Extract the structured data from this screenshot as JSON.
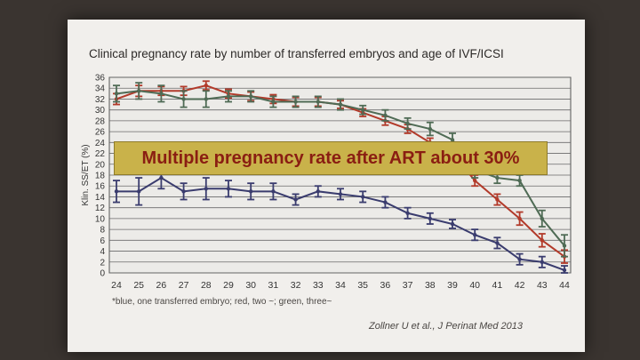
{
  "slide": {
    "title": "Clinical pregnancy rate by number of transferred embryos and age of IVF/ICSI",
    "banner": "Multiple pregnancy rate after ART about 30%",
    "footnote": "*blue, one transferred embryo; red, two ~; green, three~",
    "citation": "Zollner U et al., J Perinat Med 2013"
  },
  "chart_data": {
    "type": "line",
    "title": "Clinical pregnancy rate by number of transferred embryos and age of IVF/ICSI",
    "ylabel": "Klin. SS/ET (%)",
    "xlabel": "",
    "categories": [
      24,
      25,
      26,
      27,
      28,
      29,
      30,
      31,
      32,
      33,
      34,
      35,
      36,
      37,
      38,
      39,
      40,
      41,
      42,
      43,
      44
    ],
    "ylim": [
      0,
      36
    ],
    "yticks": [
      0,
      2,
      4,
      6,
      8,
      10,
      12,
      14,
      16,
      18,
      20,
      22,
      24,
      26,
      28,
      30,
      32,
      34,
      36
    ],
    "grid": true,
    "error_bars": true,
    "series": [
      {
        "key": "blue",
        "color": "#3a3c6e",
        "values": [
          15,
          15,
          17.5,
          15,
          15.5,
          15.5,
          15,
          15,
          13.5,
          15,
          14.5,
          14,
          13,
          11,
          10,
          9,
          7,
          5.5,
          2.5,
          2,
          0.5
        ],
        "err": [
          2,
          2.5,
          2,
          1.5,
          2,
          1.5,
          1.5,
          1.5,
          1,
          1,
          1,
          1,
          1,
          1,
          1,
          0.8,
          1,
          1,
          1,
          1,
          0.8
        ]
      },
      {
        "key": "red",
        "color": "#b23a2a",
        "values": [
          32,
          33.5,
          33.5,
          33.5,
          34.5,
          33,
          32.5,
          32,
          31.5,
          31.5,
          31,
          29.5,
          28,
          26.5,
          24,
          22,
          17,
          13.5,
          10,
          6,
          3
        ],
        "err": [
          1,
          1,
          0.8,
          0.8,
          0.8,
          0.8,
          0.8,
          0.8,
          0.8,
          0.8,
          0.7,
          0.7,
          0.8,
          0.8,
          0.8,
          1,
          1,
          1,
          1.2,
          1.2,
          1.2
        ]
      },
      {
        "key": "green",
        "color": "#4f6b55",
        "values": [
          33,
          33.5,
          33,
          32,
          32,
          32.5,
          32.5,
          31.5,
          31.5,
          31.5,
          31,
          30,
          29,
          27.5,
          26.5,
          24.5,
          19,
          17.5,
          17,
          10,
          5
        ],
        "err": [
          1.5,
          1.5,
          1.5,
          1.5,
          1.5,
          1,
          1,
          1,
          1,
          1,
          1,
          0.8,
          1,
          1,
          1.2,
          1.2,
          1.5,
          1,
          1,
          1.5,
          2
        ]
      }
    ]
  }
}
